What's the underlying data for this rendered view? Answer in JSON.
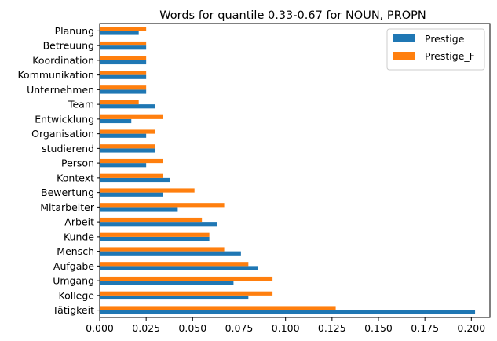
{
  "chart_data": {
    "type": "bar",
    "orientation": "horizontal",
    "title": "Words for quantile 0.33-0.67 for NOUN, PROPN",
    "xlabel": "",
    "ylabel": "",
    "xlim": [
      0,
      0.21
    ],
    "xticks": [
      0.0,
      0.025,
      0.05,
      0.075,
      0.1,
      0.125,
      0.15,
      0.175,
      0.2
    ],
    "xtick_labels": [
      "0.000",
      "0.025",
      "0.050",
      "0.075",
      "0.100",
      "0.125",
      "0.150",
      "0.175",
      "0.200"
    ],
    "grid": false,
    "legend_position": "top-right",
    "categories": [
      "Tätigkeit",
      "Kollege",
      "Umgang",
      "Aufgabe",
      "Mensch",
      "Kunde",
      "Arbeit",
      "Mitarbeiter",
      "Bewertung",
      "Kontext",
      "Person",
      "studierend",
      "Organisation",
      "Entwicklung",
      "Team",
      "Unternehmen",
      "Kommunikation",
      "Koordination",
      "Betreuung",
      "Planung"
    ],
    "series": [
      {
        "name": "Prestige",
        "color": "#1f77b4",
        "values": [
          0.202,
          0.08,
          0.072,
          0.085,
          0.076,
          0.059,
          0.063,
          0.042,
          0.034,
          0.038,
          0.025,
          0.03,
          0.025,
          0.017,
          0.03,
          0.025,
          0.025,
          0.025,
          0.025,
          0.021
        ]
      },
      {
        "name": "Prestige_F",
        "color": "#ff7f0e",
        "values": [
          0.127,
          0.093,
          0.093,
          0.08,
          0.067,
          0.059,
          0.055,
          0.067,
          0.051,
          0.034,
          0.034,
          0.03,
          0.03,
          0.034,
          0.021,
          0.025,
          0.025,
          0.025,
          0.025,
          0.025
        ]
      }
    ]
  }
}
